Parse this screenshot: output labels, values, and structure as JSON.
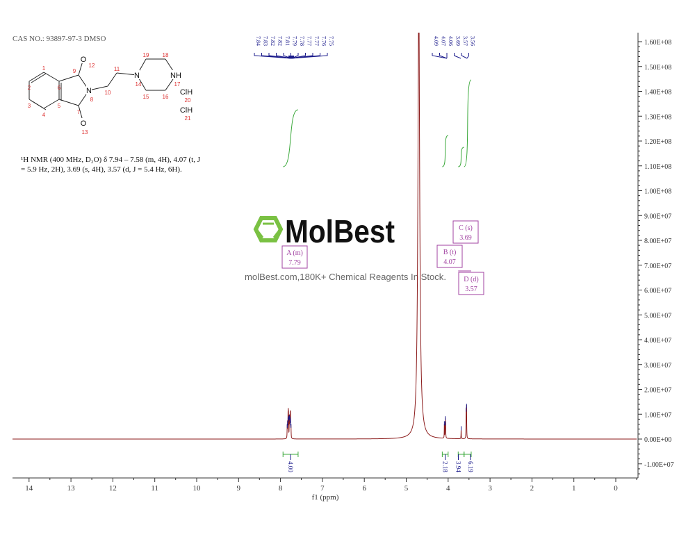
{
  "header": {
    "cas": "CAS NO.: 93897-97-3 DMSO"
  },
  "molecule": {
    "atoms": [
      {
        "id": "1",
        "el": ""
      },
      {
        "id": "2",
        "el": ""
      },
      {
        "id": "3",
        "el": ""
      },
      {
        "id": "4",
        "el": ""
      },
      {
        "id": "5",
        "el": ""
      },
      {
        "id": "6",
        "el": ""
      },
      {
        "id": "7",
        "el": ""
      },
      {
        "id": "8",
        "el": "N"
      },
      {
        "id": "9",
        "el": ""
      },
      {
        "id": "10",
        "el": ""
      },
      {
        "id": "11",
        "el": ""
      },
      {
        "id": "12",
        "el": "O"
      },
      {
        "id": "13",
        "el": "O"
      },
      {
        "id": "14",
        "el": "N"
      },
      {
        "id": "15",
        "el": ""
      },
      {
        "id": "16",
        "el": ""
      },
      {
        "id": "17",
        "el": "NH"
      },
      {
        "id": "18",
        "el": ""
      },
      {
        "id": "19",
        "el": ""
      },
      {
        "id": "20",
        "el": "ClH"
      },
      {
        "id": "21",
        "el": "ClH"
      }
    ]
  },
  "nmr_text": {
    "line1": "¹H NMR (400 MHz, D₂O) δ 7.94 – 7.58 (m, 4H), 4.07 (t, J",
    "line2": "= 5.9 Hz, 2H), 3.69 (s, 4H), 3.57 (d, J = 5.4 Hz, 6H)."
  },
  "watermark": {
    "brand": "MolBest",
    "tagline": "molBest.com,180K+ Chemical Reagents In Stock."
  },
  "colors": {
    "spectrum": "#8b1a1a",
    "peak_marker": "#1a1a8b",
    "integral": "#3aa83a",
    "multiplet_box": "#a040a0",
    "logo": "#7ac143"
  },
  "chart_data": {
    "type": "line",
    "xlabel": "f1 (ppm)",
    "xlim": [
      14.6,
      -0.5
    ],
    "x_reversed": true,
    "x_ticks": [
      "14",
      "13",
      "12",
      "11",
      "10",
      "9",
      "8",
      "7",
      "6",
      "5",
      "4",
      "3",
      "2",
      "1",
      "0"
    ],
    "ylim": [
      -15000000.0,
      162000000.0
    ],
    "y_axis_side": "right",
    "y_ticks": [
      "1.60E+08",
      "1.50E+08",
      "1.40E+08",
      "1.30E+08",
      "1.20E+08",
      "1.10E+08",
      "1.00E+08",
      "9.00E+07",
      "8.00E+07",
      "7.00E+07",
      "6.00E+07",
      "5.00E+07",
      "4.00E+07",
      "3.00E+07",
      "2.00E+07",
      "1.00E+07",
      "0.00E+00",
      "-1.00E+07"
    ],
    "peaks": [
      {
        "ppm": 7.84,
        "h": 4500000.0
      },
      {
        "ppm": 7.83,
        "h": 5500000.0
      },
      {
        "ppm": 7.82,
        "h": 7000000.0
      },
      {
        "ppm": 7.815,
        "h": 7000000.0
      },
      {
        "ppm": 7.81,
        "h": 7500000.0
      },
      {
        "ppm": 7.79,
        "h": 8000000.0
      },
      {
        "ppm": 7.78,
        "h": 7500000.0
      },
      {
        "ppm": 7.77,
        "h": 7000000.0
      },
      {
        "ppm": 7.765,
        "h": 6500000.0
      },
      {
        "ppm": 7.76,
        "h": 5500000.0
      },
      {
        "ppm": 7.75,
        "h": 4500000.0
      },
      {
        "ppm": 4.09,
        "h": 5500000.0
      },
      {
        "ppm": 4.07,
        "h": 7500000.0
      },
      {
        "ppm": 4.06,
        "h": 5500000.0
      },
      {
        "ppm": 3.69,
        "h": 3500000.0
      },
      {
        "ppm": 3.57,
        "h": 11000000.0
      },
      {
        "ppm": 3.56,
        "h": 12500000.0
      },
      {
        "ppm": 4.7,
        "h": 180000000.0,
        "broad": true
      }
    ],
    "peak_labels_group1": [
      "7.84",
      "7.83",
      "7.82",
      "7.82",
      "7.81",
      "7.79",
      "7.78",
      "7.77",
      "7.77",
      "7.76",
      "7.75"
    ],
    "peak_labels_group2": [
      "4.09",
      "4.07",
      "4.06",
      "3.69",
      "3.57",
      "3.56"
    ],
    "integrals": [
      {
        "from": 7.94,
        "to": 7.58,
        "value": "4.00"
      },
      {
        "from": 4.14,
        "to": 4.0,
        "value": "2.18"
      },
      {
        "from": 3.76,
        "to": 3.62,
        "value": "3.94"
      },
      {
        "from": 3.62,
        "to": 3.45,
        "value": "6.19"
      }
    ],
    "multiplets": [
      {
        "label": "A (m)",
        "shift": "7.79"
      },
      {
        "label": "B (t)",
        "shift": "4.07"
      },
      {
        "label": "C (s)",
        "shift": "3.69"
      },
      {
        "label": "D (d)",
        "shift": "3.57"
      }
    ]
  }
}
